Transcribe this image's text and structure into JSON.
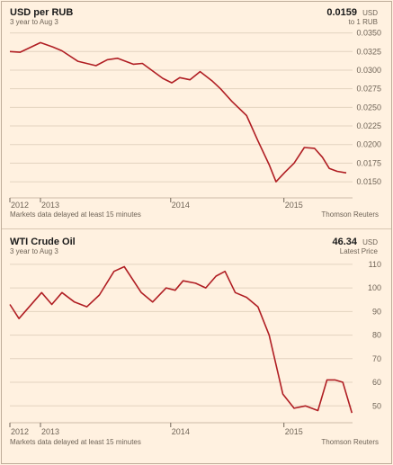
{
  "panels": [
    {
      "title": "USD per RUB",
      "subtitle": "3 year to Aug 3",
      "value": "0.0159",
      "value_unit": "USD",
      "value_sub": "to 1 RUB",
      "delay_note": "Markets data delayed at least 15 minutes",
      "source": "Thomson Reuters"
    },
    {
      "title": "WTI Crude Oil",
      "subtitle": "3 year to Aug 3",
      "value": "46.34",
      "value_unit": "USD",
      "value_sub": "Latest Price",
      "delay_note": "Markets data delayed at least 15 minutes",
      "source": "Thomson Reuters"
    }
  ],
  "colors": {
    "background": "#fff1e0",
    "line": "#b01e23",
    "grid": "#e3d3bf",
    "axis": "#6f6457"
  },
  "chart_data": [
    {
      "type": "line",
      "title": "USD per RUB",
      "x_tick_labels": [
        "2012",
        "2013",
        "2014",
        "2015"
      ],
      "x_tick_positions": [
        2012.58,
        2012.85,
        2014.0,
        2015.0
      ],
      "xlim": [
        2012.58,
        2015.59
      ],
      "ylim": [
        0.0132,
        0.0358
      ],
      "y_ticks": [
        "0.0350",
        "0.0325",
        "0.0300",
        "0.0275",
        "0.0250",
        "0.0225",
        "0.0200",
        "0.0175",
        "0.0150"
      ],
      "y_tick_values": [
        0.035,
        0.0325,
        0.03,
        0.0275,
        0.025,
        0.0225,
        0.02,
        0.0175,
        0.015
      ],
      "series": [
        {
          "x": [
            2012.58,
            2012.67,
            2012.85,
            2012.96,
            2013.04,
            2013.18,
            2013.34,
            2013.44,
            2013.53,
            2013.67,
            2013.75,
            2013.93,
            2014.01,
            2014.08,
            2014.17,
            2014.26,
            2014.37,
            2014.44,
            2014.54,
            2014.67,
            2014.77,
            2014.87,
            2014.93,
            2015.01,
            2015.09,
            2015.18,
            2015.27,
            2015.34,
            2015.4,
            2015.47,
            2015.55
          ],
          "y": [
            0.0325,
            0.0324,
            0.0337,
            0.0331,
            0.0326,
            0.0312,
            0.0306,
            0.0314,
            0.0316,
            0.0308,
            0.0309,
            0.0289,
            0.0283,
            0.029,
            0.0287,
            0.0298,
            0.0285,
            0.0275,
            0.0258,
            0.0239,
            0.0205,
            0.0173,
            0.015,
            0.0163,
            0.0175,
            0.0196,
            0.0195,
            0.0183,
            0.0168,
            0.0164,
            0.0162
          ]
        }
      ]
    },
    {
      "type": "line",
      "title": "WTI Crude Oil",
      "x_tick_labels": [
        "2012",
        "2013",
        "2014",
        "2015"
      ],
      "x_tick_positions": [
        2012.58,
        2012.85,
        2014.0,
        2015.0
      ],
      "xlim": [
        2012.58,
        2015.59
      ],
      "ylim": [
        44,
        113
      ],
      "y_ticks": [
        "110",
        "100",
        "90",
        "80",
        "70",
        "60",
        "50"
      ],
      "y_tick_values": [
        110,
        100,
        90,
        80,
        70,
        60,
        50
      ],
      "series": [
        {
          "x": [
            2012.58,
            2012.66,
            2012.86,
            2012.95,
            2013.04,
            2013.15,
            2013.26,
            2013.37,
            2013.5,
            2013.59,
            2013.74,
            2013.84,
            2013.96,
            2014.04,
            2014.11,
            2014.22,
            2014.31,
            2014.4,
            2014.48,
            2014.57,
            2014.67,
            2014.77,
            2014.87,
            2014.99,
            2015.09,
            2015.19,
            2015.3,
            2015.38,
            2015.45,
            2015.52,
            2015.6
          ],
          "y": [
            93,
            87,
            98,
            93,
            98,
            94,
            92,
            97,
            107,
            109,
            98,
            94,
            100,
            99,
            103,
            102,
            100,
            105,
            107,
            98,
            96,
            92,
            80,
            55,
            49,
            50,
            48,
            61,
            61,
            60,
            47
          ]
        }
      ]
    }
  ]
}
